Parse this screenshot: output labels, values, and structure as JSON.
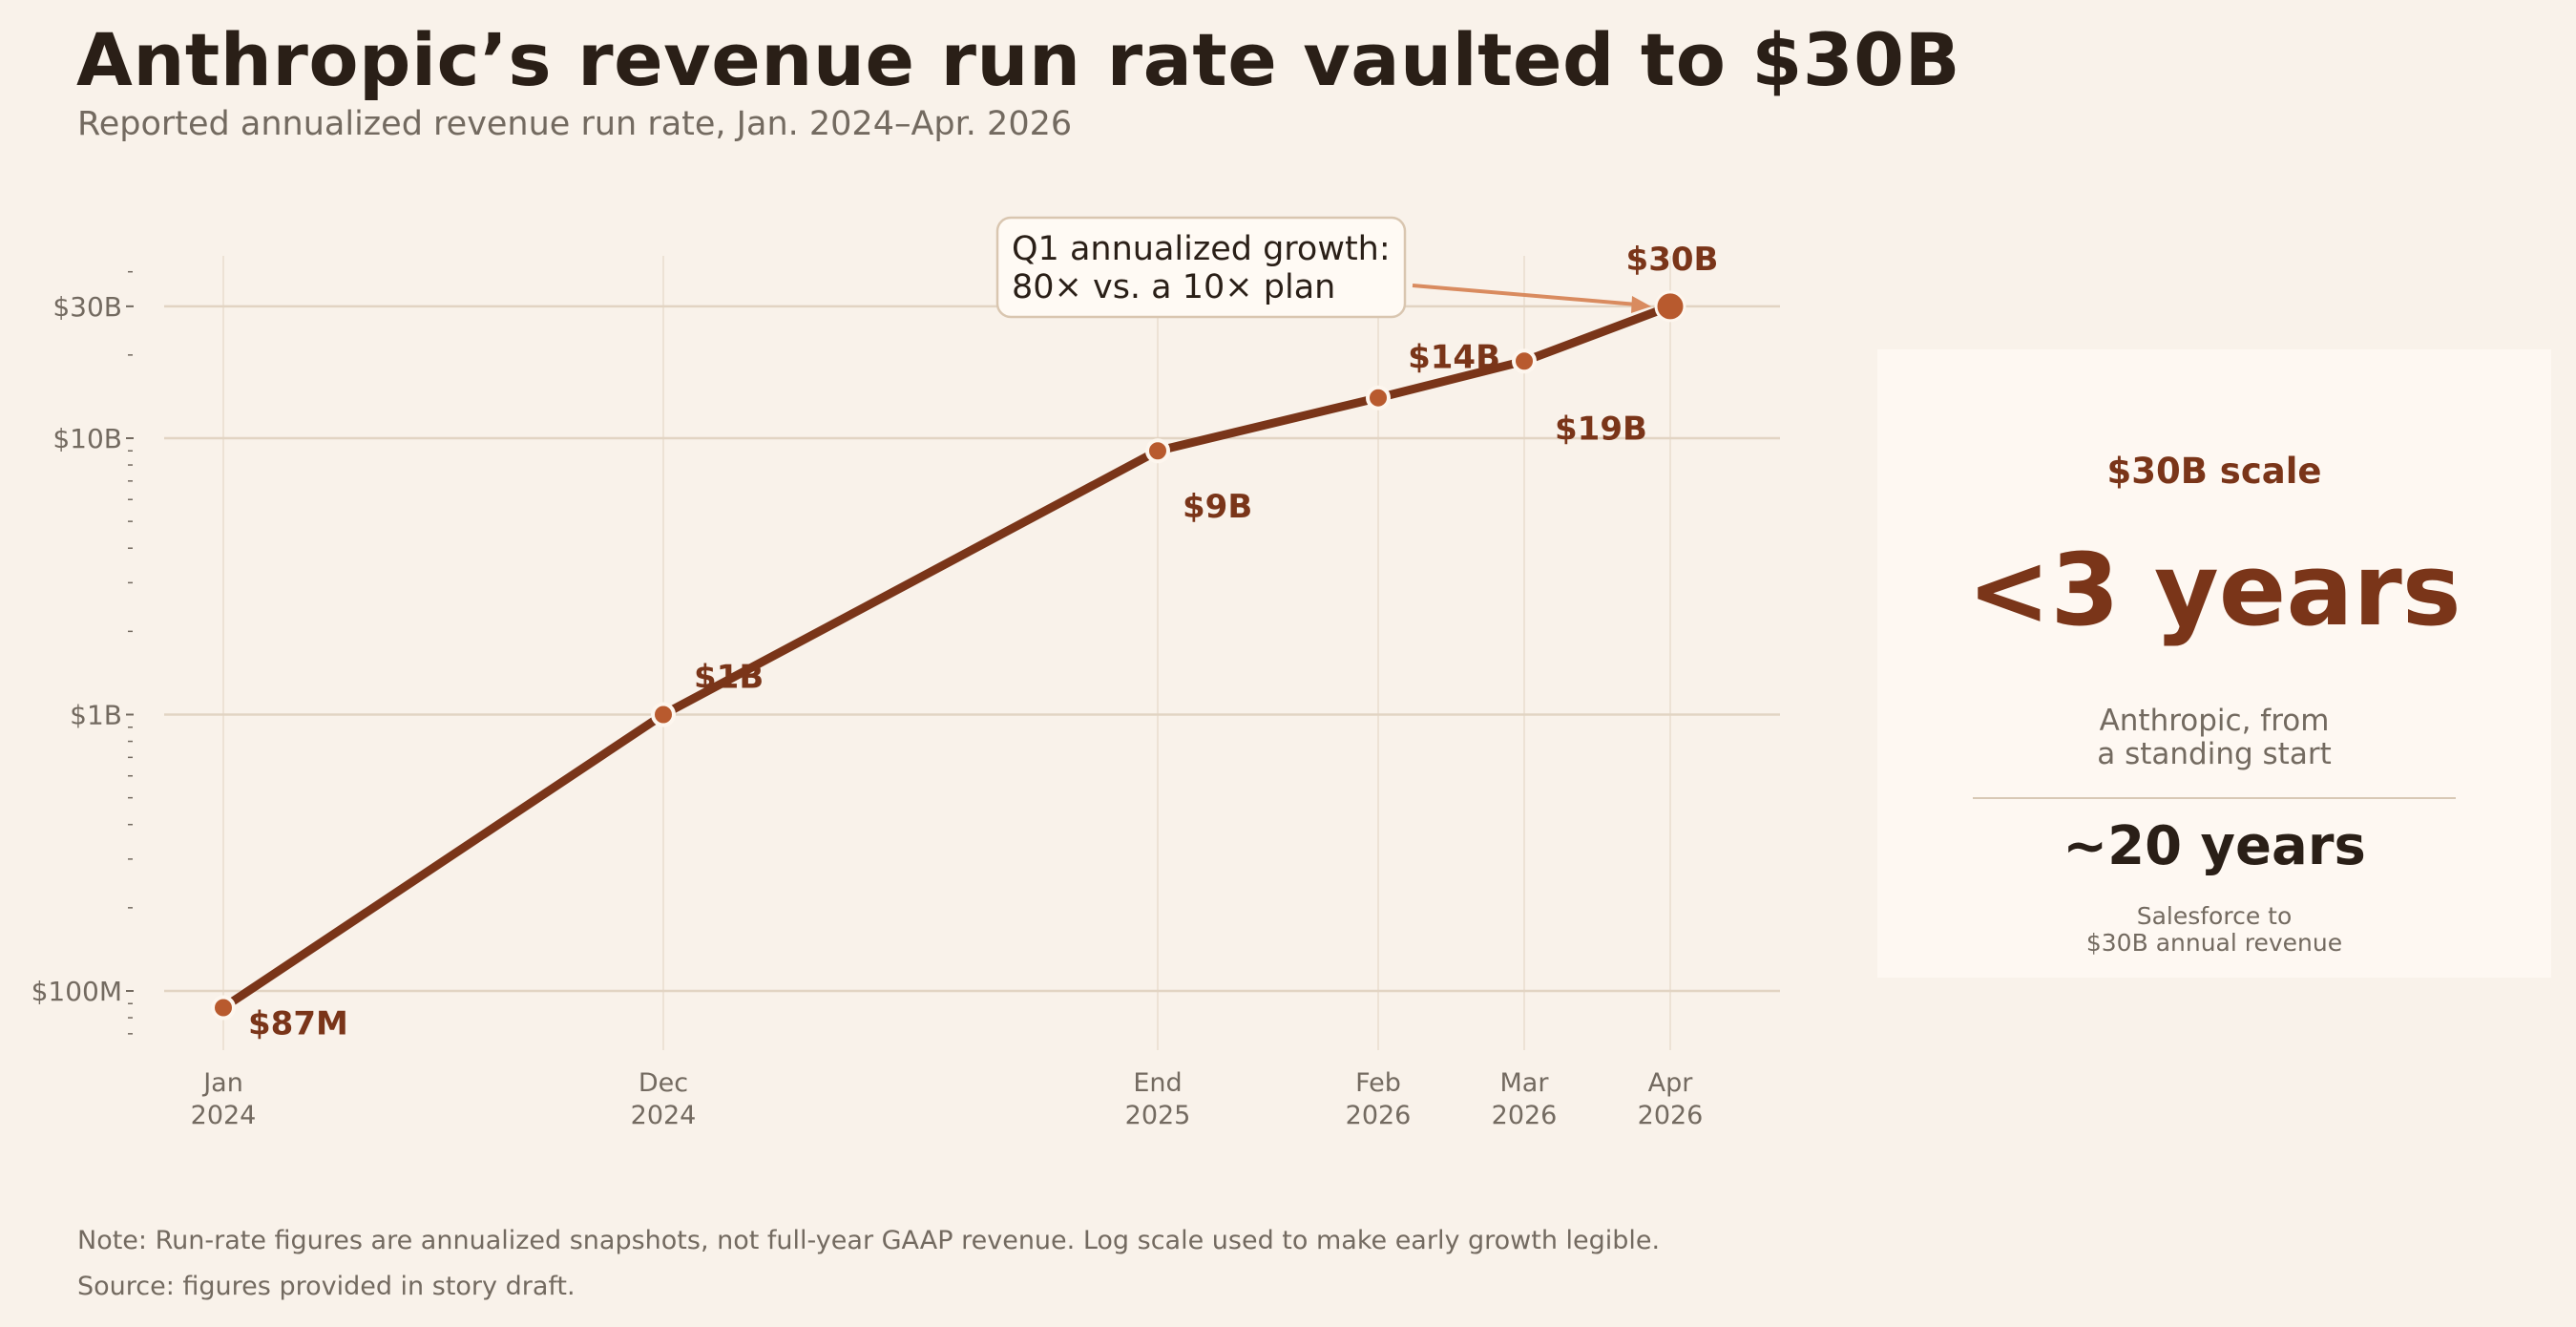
{
  "header": {
    "title": "Anthropic’s revenue run rate vaulted to $30B",
    "subtitle": "Reported annualized revenue run rate, Jan. 2024–Apr. 2026"
  },
  "colors": {
    "background": "#f9f2ea",
    "line": "#7a3519",
    "marker": "#b85a2e",
    "label": "#7a3519",
    "grid": "#e2d4c3",
    "arrow": "#d98b5f"
  },
  "chart_data": {
    "type": "line",
    "scale": "log",
    "title": "Anthropic’s revenue run rate vaulted to $30B",
    "subtitle": "Reported annualized revenue run rate, Jan. 2024–Apr. 2026",
    "x_unit": "months since Jan 2024",
    "ylim": [
      60,
      50000
    ],
    "xlim": [
      -3,
      32
    ],
    "grid": true,
    "y_ticks": [
      {
        "value": 100,
        "label": "$100M"
      },
      {
        "value": 1000,
        "label": "$1B"
      },
      {
        "value": 10000,
        "label": "$10B"
      },
      {
        "value": 30000,
        "label": "$30B"
      }
    ],
    "series": [
      {
        "values_unit": "$M",
        "points": [
          {
            "x": 0,
            "tick": [
              "Jan",
              "2024"
            ],
            "value": 87,
            "label": "$87M"
          },
          {
            "x": 11,
            "tick": [
              "Dec",
              "2024"
            ],
            "value": 1000,
            "label": "$1B"
          },
          {
            "x": 23,
            "tick": [
              "End",
              "2025"
            ],
            "value": 9000,
            "label": "$9B"
          },
          {
            "x": 28.5,
            "tick": [
              "Feb",
              "2026"
            ],
            "value": 14000,
            "label": "$14B"
          },
          {
            "x": 32,
            "tick": [
              "Mar",
              "2026"
            ],
            "value": 19000,
            "label": "$19B"
          },
          {
            "x": 35.5,
            "tick": [
              "Apr",
              "2026"
            ],
            "value": 30000,
            "label": "$30B"
          }
        ]
      }
    ],
    "annotation": {
      "lines": [
        "Q1 annualized growth:",
        "80× vs. a 10× plan"
      ],
      "points_to": "Apr 2026"
    }
  },
  "side_card": {
    "kicker": "$30B scale",
    "big": "<3 years",
    "desc_lines": [
      "Anthropic, from",
      "a standing start"
    ],
    "compare": "~20 years",
    "compare_desc_lines": [
      "Salesforce to",
      "$30B annual revenue"
    ]
  },
  "footer": {
    "note": "Note: Run-rate figures are annualized snapshots, not full-year GAAP revenue. Log scale used to make early growth legible.",
    "source": "Source: figures provided in story draft."
  }
}
